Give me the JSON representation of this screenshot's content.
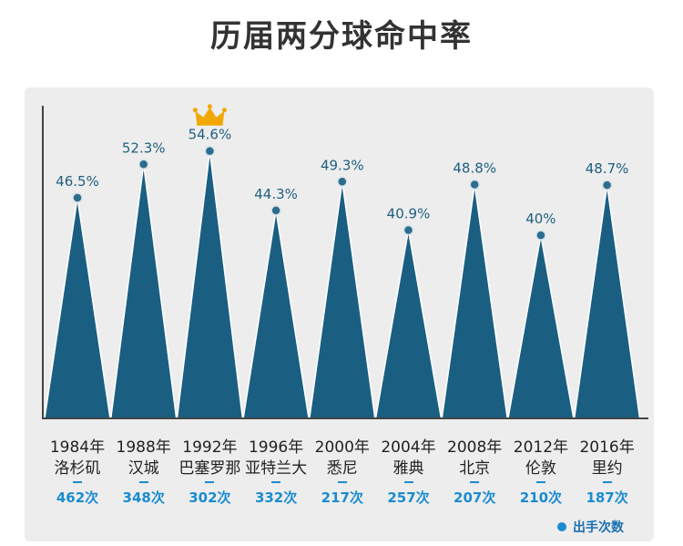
{
  "title": "历届两分球命中率",
  "chart_data": {
    "type": "area",
    "title": "历届两分球命中率",
    "categories": [
      {
        "year": "1984年",
        "city": "洛杉矶",
        "attempts": "462次"
      },
      {
        "year": "1988年",
        "city": "汉城",
        "attempts": "348次"
      },
      {
        "year": "1992年",
        "city": "巴塞罗那",
        "attempts": "302次"
      },
      {
        "year": "1996年",
        "city": "亚特兰大",
        "attempts": "332次"
      },
      {
        "year": "2000年",
        "city": "悉尼",
        "attempts": "217次"
      },
      {
        "year": "2004年",
        "city": "雅典",
        "attempts": "257次"
      },
      {
        "year": "2008年",
        "city": "北京",
        "attempts": "207次"
      },
      {
        "year": "2012年",
        "city": "伦敦",
        "attempts": "210次"
      },
      {
        "year": "2016年",
        "city": "里约",
        "attempts": "187次"
      }
    ],
    "series": [
      {
        "values": [
          46.5,
          52.3,
          54.6,
          44.3,
          49.3,
          40.9,
          48.8,
          40,
          48.7
        ],
        "labels": [
          "46.5%",
          "52.3%",
          "54.6%",
          "44.3%",
          "49.3%",
          "40.9%",
          "48.8%",
          "40%",
          "48.7%"
        ]
      }
    ],
    "max_marker": "crown-icon",
    "legend": {
      "label": "出手次数",
      "position": "bottom-right"
    },
    "colors": {
      "peak": "#1a5f82",
      "dot": "#2b6d8e",
      "count": "#1a8ccf",
      "panel": "#ededed"
    }
  }
}
